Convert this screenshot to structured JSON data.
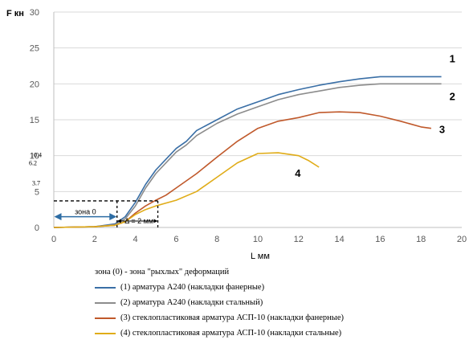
{
  "chart_data": {
    "type": "line",
    "ylabel": "F кн",
    "xlabel": "L мм",
    "xlim": [
      0,
      20
    ],
    "ylim": [
      0,
      30
    ],
    "x_ticks": [
      "0",
      "2",
      "4",
      "6",
      "8",
      "10",
      "12",
      "14",
      "16",
      "18",
      "20"
    ],
    "y_ticks": [
      "0",
      "5",
      "10",
      "15",
      "20",
      "25",
      "30"
    ],
    "grid": "horizontal",
    "legend_placement": "bottom",
    "series": [
      {
        "label": "1",
        "name": "(1) арматура А240 (накладки фанерные)",
        "color": "#3a6fa6",
        "points": [
          [
            0,
            0
          ],
          [
            2,
            0.1
          ],
          [
            3,
            0.5
          ],
          [
            3.5,
            1.5
          ],
          [
            4,
            3.5
          ],
          [
            4.5,
            6
          ],
          [
            5,
            8
          ],
          [
            5.5,
            9.5
          ],
          [
            6,
            11
          ],
          [
            6.5,
            12
          ],
          [
            7,
            13.5
          ],
          [
            8,
            15
          ],
          [
            9,
            16.5
          ],
          [
            10,
            17.5
          ],
          [
            11,
            18.5
          ],
          [
            12,
            19.2
          ],
          [
            13,
            19.8
          ],
          [
            14,
            20.3
          ],
          [
            15,
            20.7
          ],
          [
            16,
            21
          ],
          [
            17,
            21
          ],
          [
            18,
            21
          ],
          [
            19,
            21
          ]
        ]
      },
      {
        "label": "2",
        "name": "(2) арматура А240 (накладки стальный)",
        "color": "#8c8c8c",
        "points": [
          [
            0,
            0
          ],
          [
            2,
            0.1
          ],
          [
            3,
            0.4
          ],
          [
            3.5,
            1.2
          ],
          [
            4,
            3
          ],
          [
            4.5,
            5.5
          ],
          [
            5,
            7.5
          ],
          [
            5.5,
            9
          ],
          [
            6,
            10.5
          ],
          [
            6.5,
            11.5
          ],
          [
            7,
            12.8
          ],
          [
            8,
            14.5
          ],
          [
            9,
            15.8
          ],
          [
            10,
            16.8
          ],
          [
            11,
            17.8
          ],
          [
            12,
            18.5
          ],
          [
            13,
            19
          ],
          [
            14,
            19.5
          ],
          [
            15,
            19.8
          ],
          [
            16,
            20
          ],
          [
            17,
            20
          ],
          [
            18,
            20
          ],
          [
            19,
            20
          ]
        ]
      },
      {
        "label": "3",
        "name": "(3) стеклопластиковая арматура АСП-10 (накладки фанерные)",
        "color": "#c0592b",
        "points": [
          [
            0,
            0
          ],
          [
            2,
            0.1
          ],
          [
            3,
            0.3
          ],
          [
            3.5,
            0.8
          ],
          [
            4,
            2
          ],
          [
            4.5,
            3
          ],
          [
            5,
            3.8
          ],
          [
            5.5,
            4.5
          ],
          [
            6,
            5.5
          ],
          [
            7,
            7.5
          ],
          [
            8,
            9.8
          ],
          [
            9,
            12
          ],
          [
            10,
            13.8
          ],
          [
            11,
            14.8
          ],
          [
            12,
            15.3
          ],
          [
            13,
            16
          ],
          [
            14,
            16.1
          ],
          [
            15,
            16
          ],
          [
            16,
            15.5
          ],
          [
            17,
            14.8
          ],
          [
            18,
            14
          ],
          [
            18.5,
            13.8
          ]
        ]
      },
      {
        "label": "4",
        "name": "(4) стеклопластиковая арматура АСП-10 (накладки стальные)",
        "color": "#e0ac18",
        "points": [
          [
            0,
            0
          ],
          [
            2,
            0.1
          ],
          [
            3,
            0.3
          ],
          [
            3.5,
            0.8
          ],
          [
            4,
            1.8
          ],
          [
            4.5,
            2.5
          ],
          [
            5,
            3
          ],
          [
            6,
            3.8
          ],
          [
            7,
            5
          ],
          [
            8,
            7
          ],
          [
            9,
            9
          ],
          [
            10,
            10.3
          ],
          [
            11,
            10.4
          ],
          [
            12,
            10
          ],
          [
            12.5,
            9.3
          ],
          [
            13,
            8.4
          ]
        ]
      }
    ],
    "annotations": {
      "left_y_labels": [
        "10.4",
        "6.2",
        "3.7"
      ],
      "zone_label": "зона 0",
      "delta_label": "Δ = 2 мм"
    },
    "legend_title": "зона (0) - зона \"рыхлых\" деформаций"
  }
}
